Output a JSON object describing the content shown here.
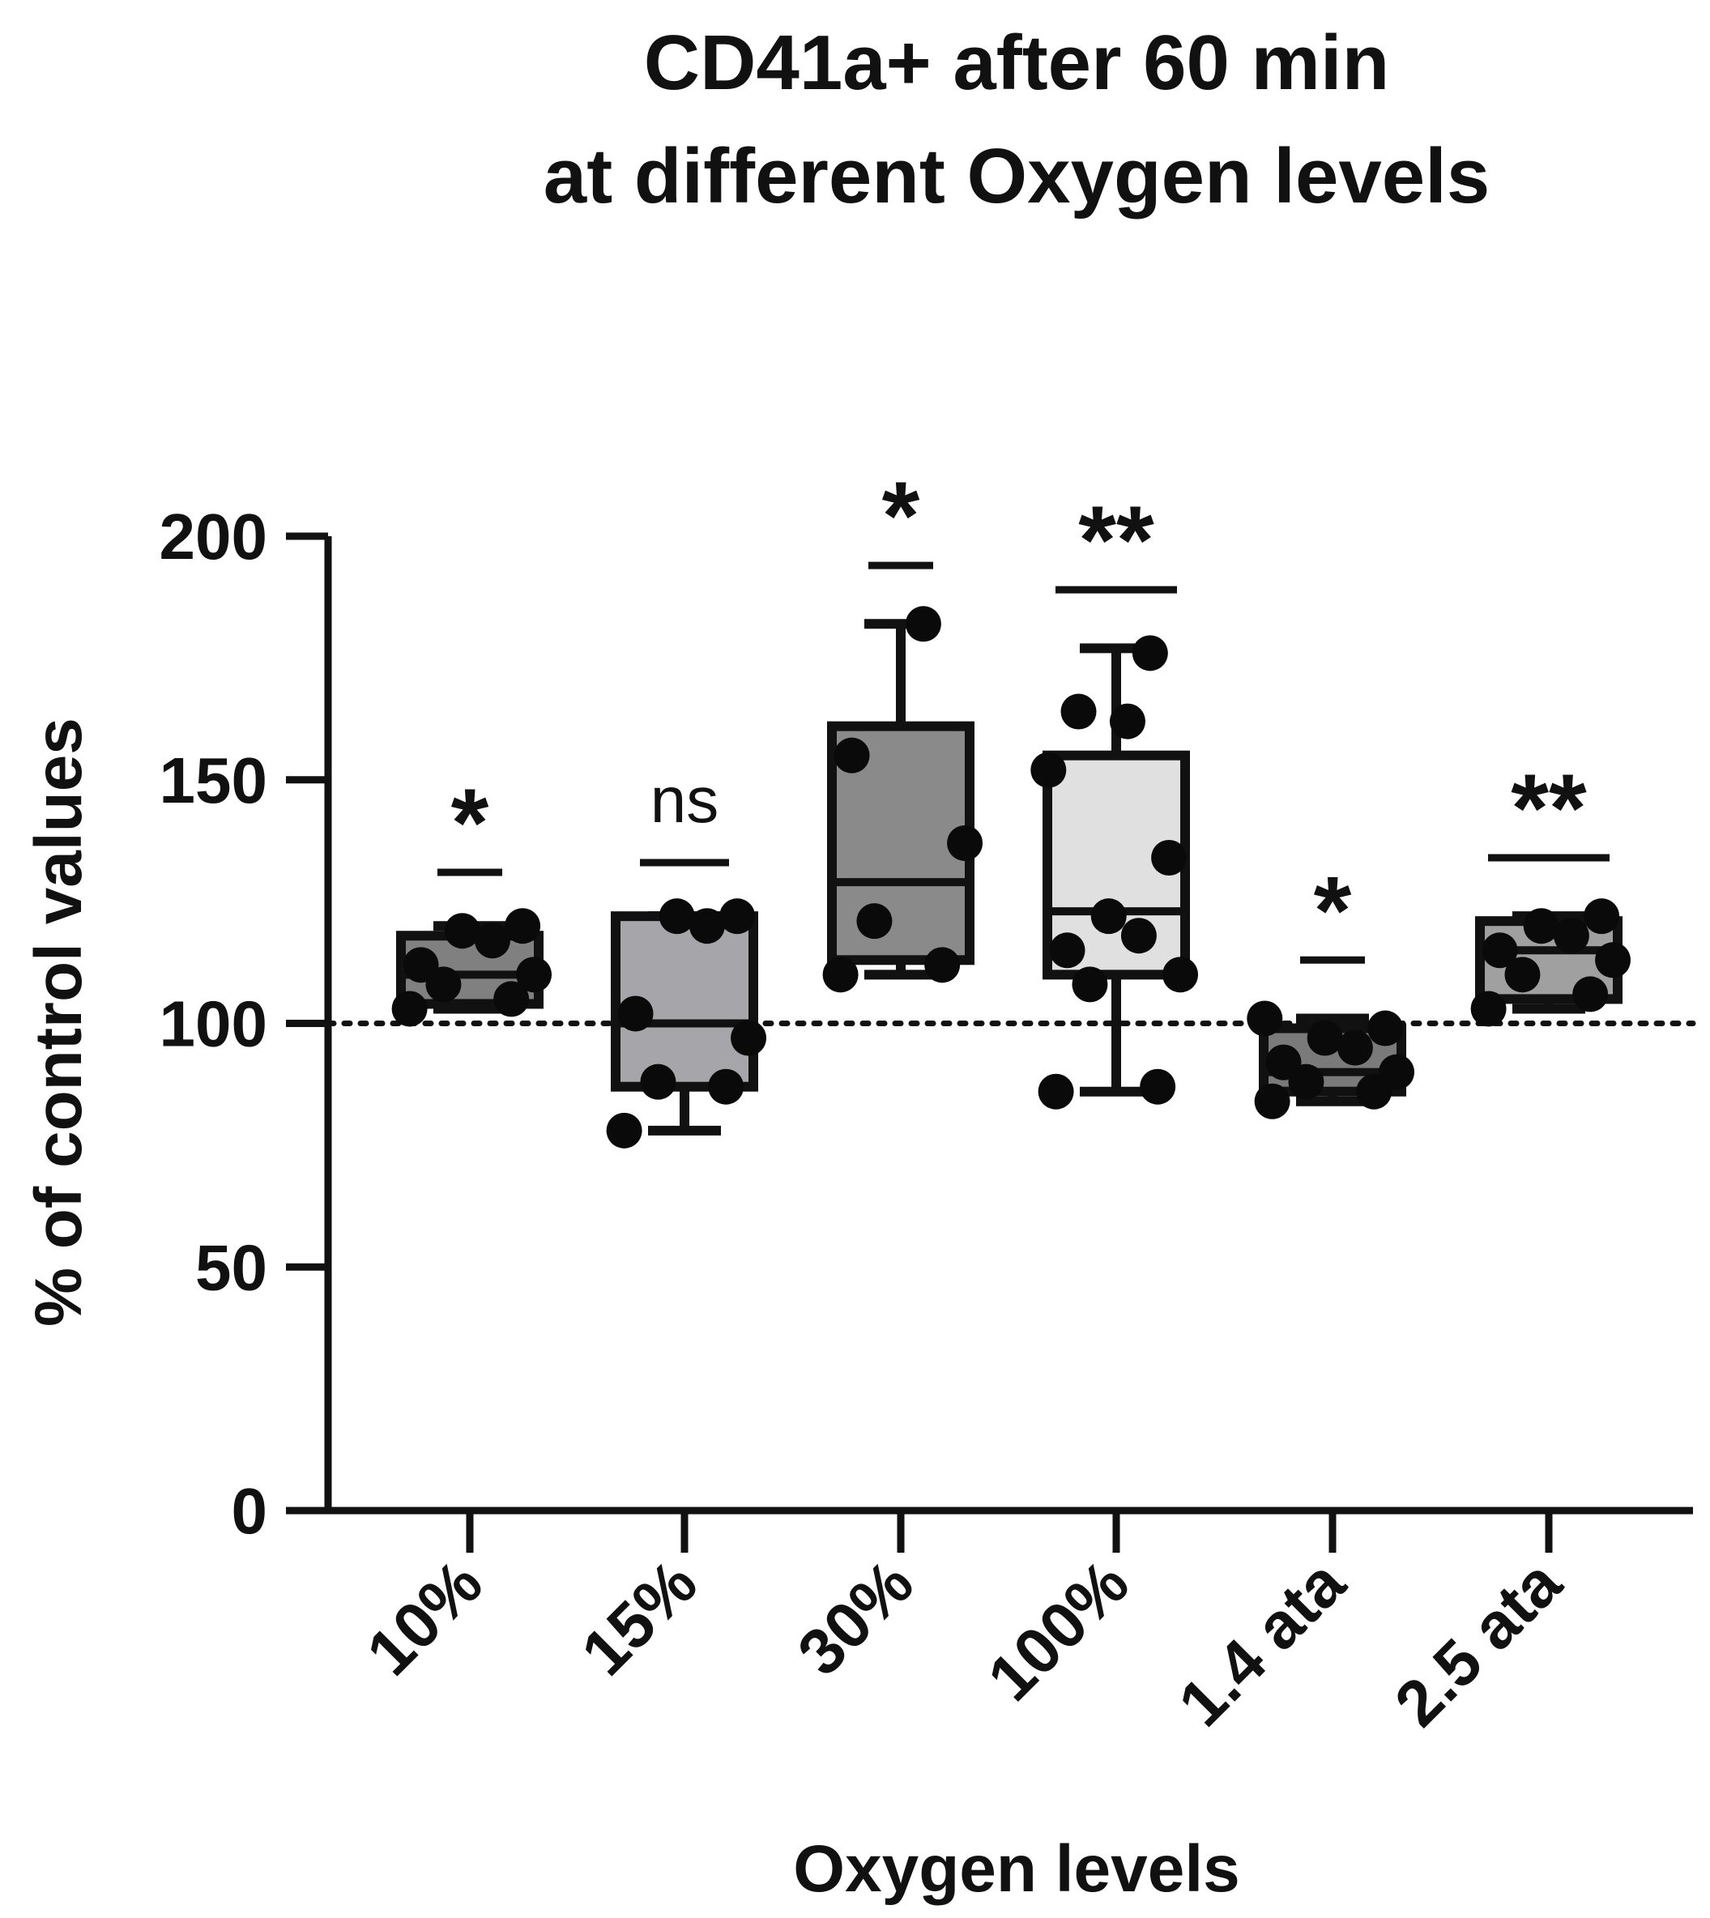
{
  "chart_data": {
    "type": "box",
    "title_line1": "CD41a+ after 60 min",
    "title_line2": "at different Oxygen levels",
    "xlabel": "Oxygen levels",
    "ylabel": "% of control values",
    "ylim": [
      0,
      200
    ],
    "yticks": [
      "0",
      "50",
      "100",
      "150",
      "200"
    ],
    "reference_line": 100,
    "categories": [
      "10%",
      "15%",
      "30%",
      "100%",
      "1.4 ata",
      "2.5 ata"
    ],
    "boxes": [
      {
        "label": "10%",
        "min": 103,
        "q1": 104,
        "median": 110,
        "q3": 118,
        "max": 120,
        "fill": "#808080",
        "significance": "*",
        "sig_bar": 131
      },
      {
        "label": "15%",
        "min": 78,
        "q1": 87,
        "median": 100,
        "q3": 122,
        "max": 122,
        "fill": "#a6a6aa",
        "significance": "ns",
        "sig_bar": 133
      },
      {
        "label": "30%",
        "min": 110,
        "q1": 113,
        "median": 129,
        "q3": 161,
        "max": 182,
        "fill": "#8a8a8a",
        "significance": "*",
        "sig_bar": 194
      },
      {
        "label": "100%",
        "min": 86,
        "q1": 110,
        "median": 123,
        "q3": 155,
        "max": 177,
        "fill": "#e0e0e0",
        "significance": "**",
        "sig_bar": 189
      },
      {
        "label": "1.4 ata",
        "min": 84,
        "q1": 86,
        "median": 90,
        "q3": 99,
        "max": 101,
        "fill": "#7a7a7a",
        "significance": "*",
        "sig_bar": 113
      },
      {
        "label": "2.5 ata",
        "min": 103,
        "q1": 105,
        "median": 115,
        "q3": 121,
        "max": 122,
        "fill": "#a0a0a0",
        "significance": "**",
        "sig_bar": 134
      }
    ],
    "points": [
      [
        103,
        105,
        108,
        110,
        112,
        117,
        119,
        120
      ],
      [
        78,
        87,
        88,
        97,
        102,
        120,
        122,
        122
      ],
      [
        110,
        112,
        121,
        137,
        155,
        182
      ],
      [
        86,
        87,
        108,
        110,
        115,
        118,
        122,
        134,
        152,
        162,
        164,
        176
      ],
      [
        84,
        86,
        88,
        90,
        92,
        95,
        97,
        99,
        101
      ],
      [
        103,
        106,
        110,
        113,
        115,
        118,
        120,
        122
      ]
    ]
  }
}
